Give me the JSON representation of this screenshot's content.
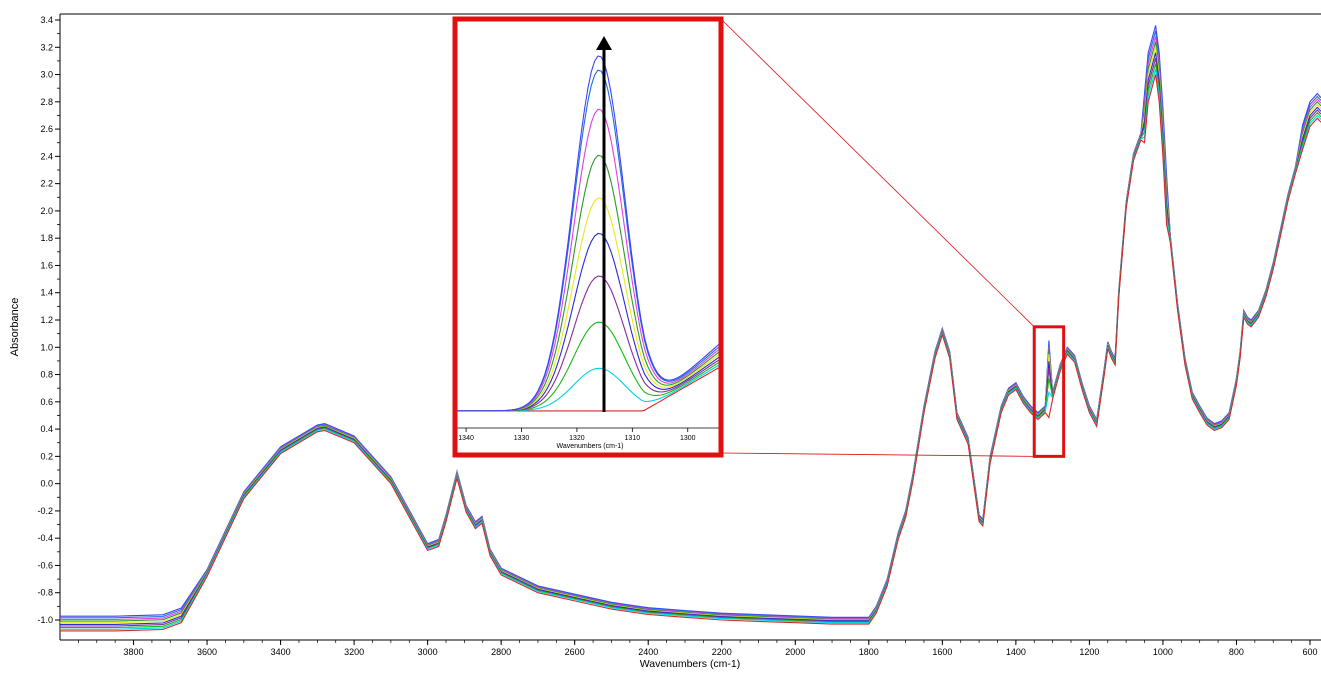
{
  "colors": {
    "series": [
      "#d62828",
      "#00d5e6",
      "#18b818",
      "#8a2a9a",
      "#2a2ad6",
      "#e8e820",
      "#2a9a2a",
      "#e040e0",
      "#1e6edc",
      "#4040ff"
    ],
    "highlight_box": "#e01010",
    "zoom_lines": "#e01010",
    "arrow": "#000000",
    "axis": "#000000"
  },
  "chart_data": [
    {
      "type": "line",
      "title": "",
      "xlabel": "Wavenumbers (cm-1)",
      "ylabel": "Absorbance",
      "xlim": [
        4000,
        570
      ],
      "ylim": [
        -1.1,
        3.45
      ],
      "x_reversed": true,
      "xticks": [
        3800,
        3600,
        3400,
        3200,
        3000,
        2800,
        2600,
        2400,
        2200,
        2000,
        1800,
        1600,
        1400,
        1200,
        1000,
        800,
        600
      ],
      "yticks": [
        -1.0,
        -0.8,
        -0.6,
        -0.4,
        -0.2,
        0.0,
        0.2,
        0.4,
        0.6,
        0.8,
        1.0,
        1.2,
        1.4,
        1.6,
        1.8,
        2.0,
        2.2,
        2.4,
        2.6,
        2.8,
        3.0,
        3.2,
        3.4
      ],
      "xtick_labels": [
        "3800",
        "3600",
        "3400",
        "3200",
        "3000",
        "2800",
        "2600",
        "2400",
        "2200",
        "2000",
        "1800",
        "1600",
        "1400",
        "1200",
        "1000",
        "800",
        "600"
      ],
      "ytick_labels": [
        "-1.0",
        "-0.8",
        "-0.6",
        "-0.4",
        "-0.2",
        "0.0",
        "0.2",
        "0.4",
        "0.6",
        "0.8",
        "1.0",
        "1.2",
        "1.4",
        "1.6",
        "1.8",
        "2.0",
        "2.2",
        "2.4",
        "2.6",
        "2.8",
        "3.0",
        "3.2",
        "3.4"
      ],
      "grid": false,
      "highlight_region": {
        "x": [
          1350,
          1270
        ],
        "y": [
          0.2,
          1.15
        ]
      },
      "base_series": {
        "x": [
          4000,
          3850,
          3720,
          3670,
          3600,
          3500,
          3400,
          3300,
          3280,
          3200,
          3100,
          3000,
          2970,
          2950,
          2920,
          2895,
          2870,
          2852,
          2830,
          2800,
          2700,
          2600,
          2500,
          2400,
          2300,
          2200,
          2100,
          2000,
          1900,
          1800,
          1780,
          1750,
          1720,
          1700,
          1680,
          1650,
          1620,
          1600,
          1580,
          1560,
          1530,
          1500,
          1490,
          1470,
          1440,
          1420,
          1400,
          1380,
          1360,
          1340,
          1320,
          1310,
          1300,
          1280,
          1260,
          1240,
          1220,
          1200,
          1180,
          1160,
          1150,
          1140,
          1130,
          1120,
          1100,
          1080,
          1060,
          1050,
          1040,
          1030,
          1020,
          1010,
          1000,
          990,
          980,
          960,
          940,
          920,
          900,
          880,
          860,
          840,
          820,
          800,
          790,
          780,
          770,
          760,
          740,
          720,
          700,
          680,
          660,
          640,
          620,
          600,
          580,
          570
        ],
        "y": [
          -1.03,
          -1.03,
          -1.02,
          -0.97,
          -0.65,
          -0.08,
          0.25,
          0.41,
          0.42,
          0.33,
          0.03,
          -0.46,
          -0.43,
          -0.25,
          0.07,
          -0.18,
          -0.3,
          -0.26,
          -0.5,
          -0.64,
          -0.77,
          -0.83,
          -0.89,
          -0.93,
          -0.95,
          -0.97,
          -0.98,
          -0.99,
          -1.0,
          -1.0,
          -0.92,
          -0.72,
          -0.38,
          -0.22,
          0.05,
          0.55,
          0.95,
          1.12,
          0.95,
          0.5,
          0.32,
          -0.25,
          -0.28,
          0.18,
          0.55,
          0.68,
          0.72,
          0.62,
          0.55,
          0.5,
          0.55,
          0.88,
          0.65,
          0.85,
          0.98,
          0.92,
          0.72,
          0.55,
          0.45,
          0.82,
          1.02,
          0.95,
          0.9,
          1.4,
          2.05,
          2.4,
          2.55,
          2.7,
          3.0,
          3.1,
          3.2,
          3.0,
          2.6,
          2.1,
          1.8,
          1.3,
          0.9,
          0.65,
          0.55,
          0.46,
          0.42,
          0.44,
          0.5,
          0.75,
          0.95,
          1.25,
          1.2,
          1.18,
          1.25,
          1.4,
          1.6,
          1.85,
          2.1,
          2.3,
          2.55,
          2.72,
          2.78,
          2.75
        ],
        "offsets": [
          -0.03,
          -0.02,
          -0.015,
          -0.01,
          -0.005,
          0.0,
          0.005,
          0.01,
          0.015,
          0.02
        ],
        "peak_1316_heights": [
          0.5,
          0.68,
          0.78,
          0.85,
          0.9,
          0.95,
          0.98,
          1.0,
          1.02,
          1.04
        ]
      }
    },
    {
      "type": "line",
      "title": "",
      "xlabel": "Wavenumbers (cm-1)",
      "ylabel": "",
      "xlim": [
        1342,
        1294
      ],
      "x_reversed": true,
      "xticks": [
        1340,
        1330,
        1320,
        1310,
        1300
      ],
      "xtick_labels": [
        "1340",
        "1330",
        "1320",
        "1310",
        "1300"
      ],
      "series_peaks": [
        0.0,
        0.12,
        0.25,
        0.38,
        0.5,
        0.6,
        0.72,
        0.85,
        0.96,
        1.0
      ],
      "annotation": "arrow pointing up at ~1316 cm-1 indicating increasing peak"
    }
  ]
}
